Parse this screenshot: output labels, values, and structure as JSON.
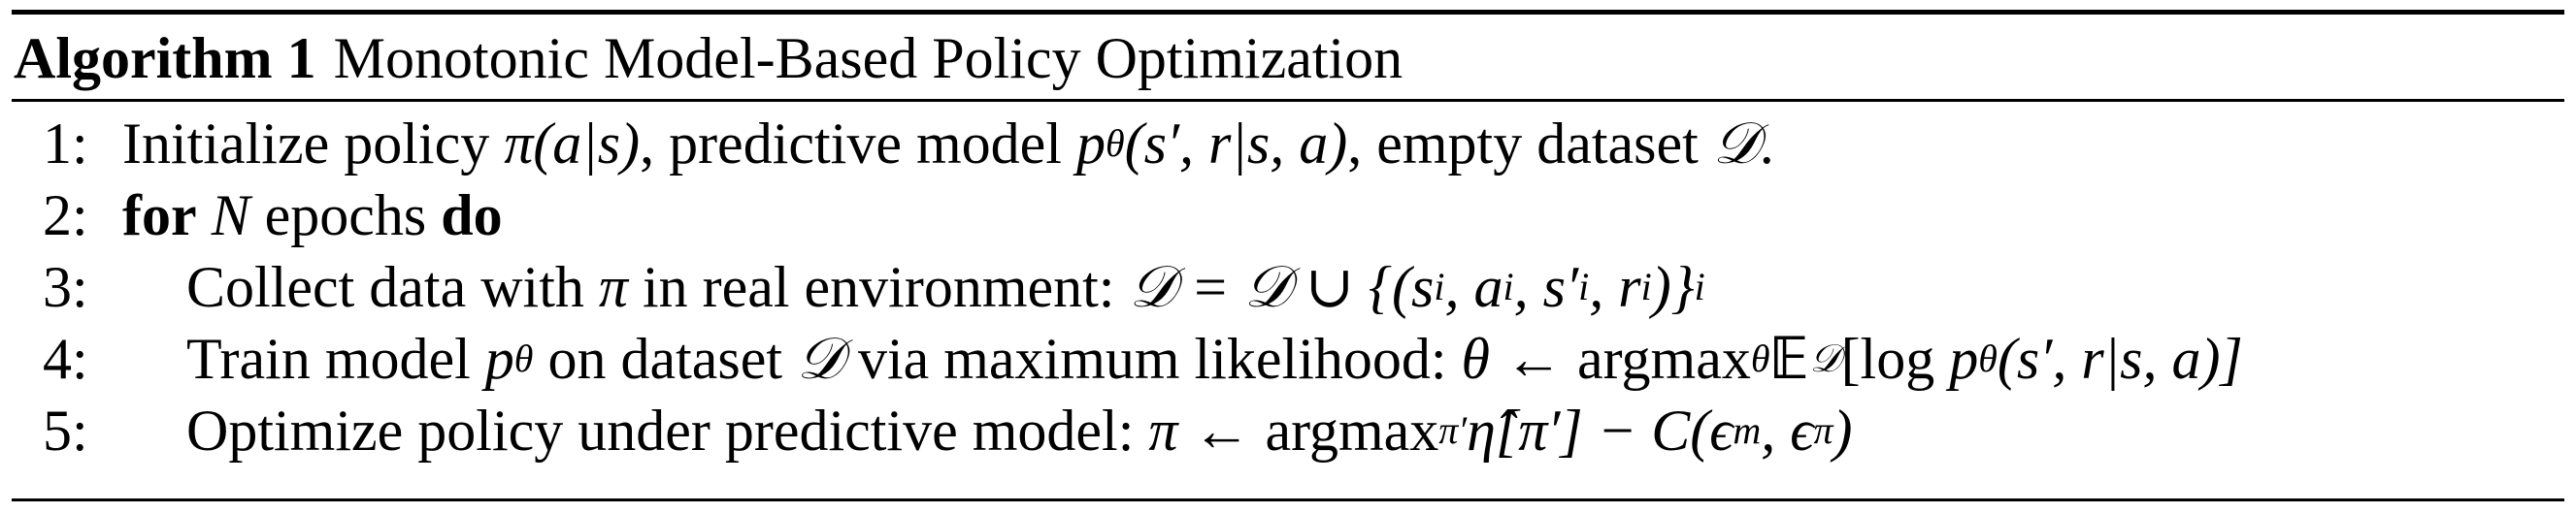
{
  "algorithm": {
    "label": "Algorithm 1",
    "title": "Monotonic Model-Based Policy Optimization"
  },
  "steps": [
    {
      "number": "1:",
      "parts": [
        "Initialize policy ",
        "π(a|s)",
        ", predictive model ",
        "p",
        "θ",
        "(s′, r|s, a)",
        ", empty dataset ",
        "𝒟",
        "."
      ]
    },
    {
      "number": "2:",
      "kw_for": "for",
      "var_N": "N",
      "text": "epochs",
      "kw_do": "do"
    },
    {
      "number": "3:",
      "text": "Collect data with ",
      "pi": "π",
      "text2": " in real environment: ",
      "math": "𝒟 = 𝒟 ∪ {(s",
      "sub_i1": "i",
      "m2": ", a",
      "sub_i2": "i",
      "m3": ", s′",
      "sub_i3": "i",
      "m4": ", r",
      "sub_i4": "i",
      "m5": ")}",
      "sub_i5": "i"
    },
    {
      "number": "4:",
      "text": "Train model ",
      "p": "p",
      "sub_theta": "θ",
      "text2": " on dataset ",
      "D": "𝒟",
      "text3": " via maximum likelihood: ",
      "theta_arrow": "θ ← ",
      "argmax": "argmax",
      "sub_theta2": "θ",
      "E": "𝔼",
      "sub_D": "𝒟",
      "log": "[log ",
      "p2": "p",
      "sub_theta3": "θ",
      "tail": "(s′, r|s, a)]"
    },
    {
      "number": "5:",
      "text": "Optimize policy under predictive model: ",
      "pi_arrow": "π ← ",
      "argmax": "argmax",
      "sub_pi": "π′",
      "eta": "η̂[π′] − C(ϵ",
      "sub_m": "m",
      "comma": ", ϵ",
      "sub_pi2": "π",
      "close": ")"
    }
  ]
}
